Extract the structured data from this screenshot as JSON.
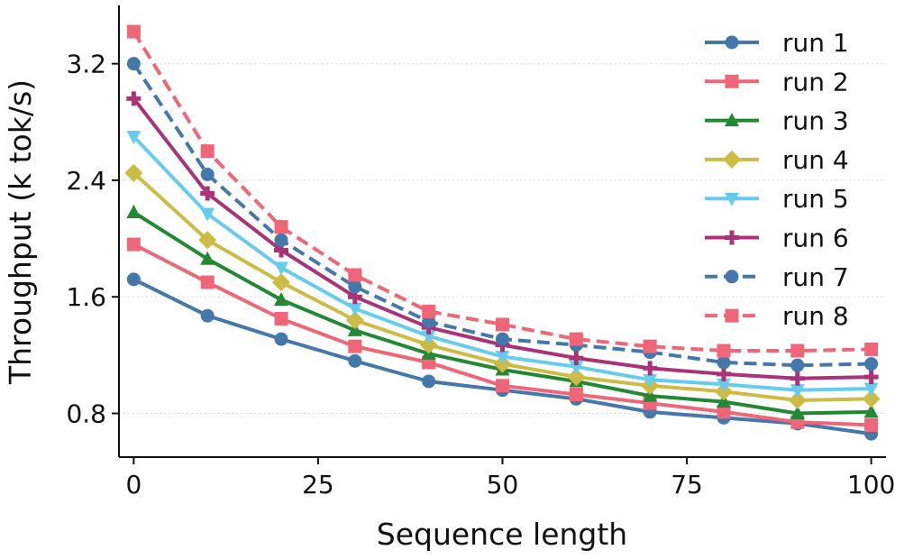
{
  "chart_data": {
    "type": "line",
    "title": "",
    "xlabel": "Sequence length",
    "ylabel": "Throughput (k tok/s)",
    "xlim": [
      -2,
      102
    ],
    "ylim": [
      0.5,
      3.6
    ],
    "xticks": [
      0,
      25,
      50,
      75,
      100
    ],
    "xtick_labels": [
      "0",
      "25",
      "50",
      "75",
      "100"
    ],
    "yticks": [
      0.8,
      1.6,
      2.4,
      3.2
    ],
    "ytick_labels": [
      "0.8",
      "1.6",
      "2.4",
      "3.2"
    ],
    "grid": "horizontal-dotted",
    "legend_position": "top-right",
    "x": [
      0,
      10,
      20,
      30,
      40,
      50,
      60,
      70,
      80,
      90,
      100
    ],
    "series": [
      {
        "name": "run 1",
        "color": "#4477aa",
        "marker": "circle",
        "dash": "solid",
        "values": [
          1.72,
          1.47,
          1.31,
          1.16,
          1.02,
          0.96,
          0.9,
          0.81,
          0.77,
          0.73,
          0.66
        ]
      },
      {
        "name": "run 2",
        "color": "#ee6677",
        "marker": "square",
        "dash": "solid",
        "values": [
          1.96,
          1.7,
          1.45,
          1.26,
          1.15,
          0.99,
          0.93,
          0.87,
          0.81,
          0.74,
          0.72
        ]
      },
      {
        "name": "run 3",
        "color": "#228833",
        "marker": "triangle-up",
        "dash": "solid",
        "values": [
          2.18,
          1.86,
          1.58,
          1.37,
          1.21,
          1.1,
          1.02,
          0.92,
          0.88,
          0.8,
          0.81
        ]
      },
      {
        "name": "run 4",
        "color": "#ccbb44",
        "marker": "diamond",
        "dash": "solid",
        "values": [
          2.45,
          1.99,
          1.7,
          1.44,
          1.27,
          1.14,
          1.05,
          0.99,
          0.95,
          0.89,
          0.9
        ]
      },
      {
        "name": "run 5",
        "color": "#66ccee",
        "marker": "triangle-down",
        "dash": "solid",
        "values": [
          2.7,
          2.17,
          1.8,
          1.52,
          1.33,
          1.19,
          1.12,
          1.03,
          1.0,
          0.96,
          0.97
        ]
      },
      {
        "name": "run 6",
        "color": "#aa3377",
        "marker": "plus",
        "dash": "solid",
        "values": [
          2.96,
          2.31,
          1.92,
          1.6,
          1.39,
          1.27,
          1.18,
          1.11,
          1.07,
          1.04,
          1.05
        ]
      },
      {
        "name": "run 7",
        "color": "#4477aa",
        "marker": "circle",
        "dash": "dashed",
        "values": [
          3.2,
          2.44,
          1.99,
          1.67,
          1.43,
          1.31,
          1.27,
          1.22,
          1.15,
          1.13,
          1.14
        ]
      },
      {
        "name": "run 8",
        "color": "#ee6677",
        "marker": "square",
        "dash": "dashed",
        "values": [
          3.42,
          2.6,
          2.08,
          1.75,
          1.5,
          1.41,
          1.31,
          1.26,
          1.23,
          1.23,
          1.24
        ]
      }
    ]
  }
}
